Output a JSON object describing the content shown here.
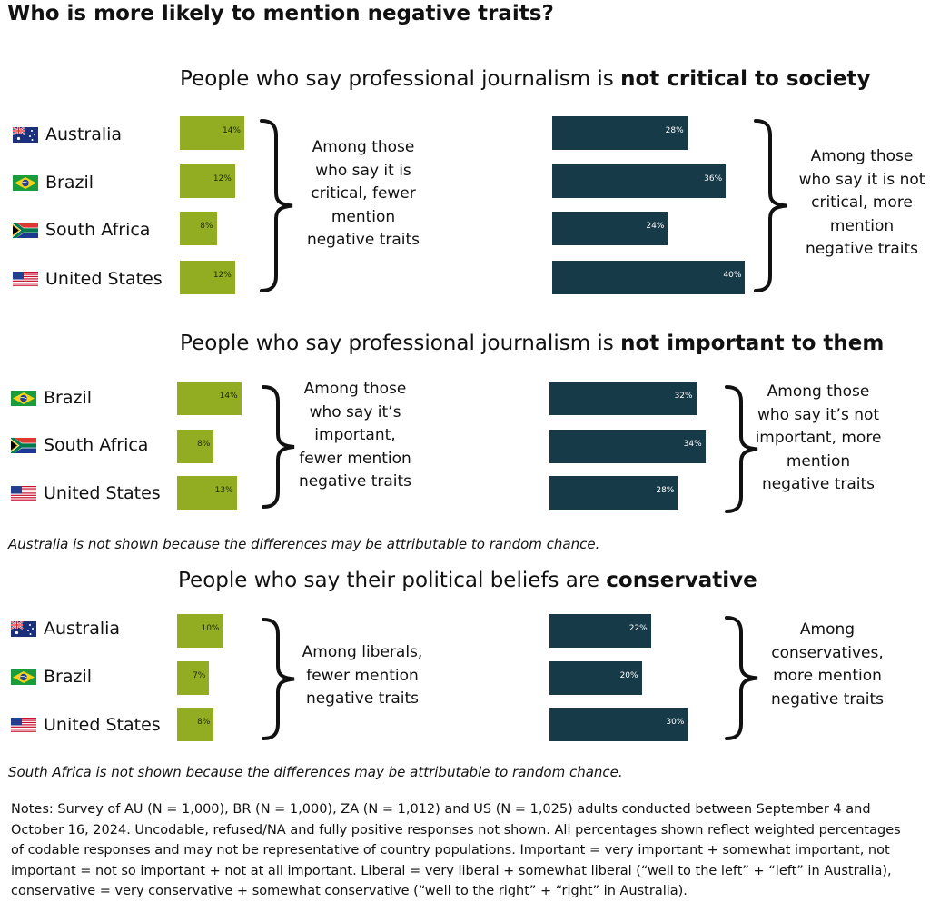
{
  "title": "Who is more likely to mention negative traits?",
  "colors": {
    "green": "#93ad22",
    "dark": "#173a49"
  },
  "chart_data": [
    {
      "type": "bar",
      "title_prefix": "People who say professional journalism is ",
      "title_bold": "not critical to society",
      "categories": [
        "Australia",
        "Brazil",
        "South Africa",
        "United States"
      ],
      "series": [
        {
          "values": [
            14,
            12,
            8,
            12
          ],
          "labels": [
            "14%",
            "12%",
            "8%",
            "12%"
          ]
        },
        {
          "values": [
            28,
            36,
            24,
            40
          ],
          "labels": [
            "28%",
            "36%",
            "24%",
            "40%"
          ]
        }
      ],
      "annotations": [
        "Among those who say it is critical, fewer mention negative traits",
        "Among those who say it is not critical, more mention negative traits"
      ]
    },
    {
      "type": "bar",
      "title_prefix": "People who say professional journalism is ",
      "title_bold": "not important to them",
      "categories": [
        "Brazil",
        "South Africa",
        "United States"
      ],
      "series": [
        {
          "values": [
            14,
            8,
            13
          ],
          "labels": [
            "14%",
            "8%",
            "13%"
          ]
        },
        {
          "values": [
            32,
            34,
            28
          ],
          "labels": [
            "32%",
            "34%",
            "28%"
          ]
        }
      ],
      "annotations": [
        "Among those who say it’s important, fewer mention negative traits",
        "Among those who say it’s not important, more mention negative traits"
      ],
      "footnote": "Australia is not shown because the differences may be attributable to random chance."
    },
    {
      "type": "bar",
      "title_prefix": "People who say their political beliefs are ",
      "title_bold": "conservative",
      "categories": [
        "Australia",
        "Brazil",
        "United States"
      ],
      "series": [
        {
          "values": [
            10,
            7,
            8
          ],
          "labels": [
            "10%",
            "7%",
            "8%"
          ]
        },
        {
          "values": [
            22,
            20,
            30
          ],
          "labels": [
            "22%",
            "20%",
            "30%"
          ]
        }
      ],
      "annotations": [
        "Among liberals, fewer mention negative traits",
        "Among conservatives, more mention negative traits"
      ],
      "footnote": "South Africa is not shown because the differences may be attributable to random chance."
    }
  ],
  "flags": {
    "Australia": "australia-flag-icon",
    "Brazil": "brazil-flag-icon",
    "South Africa": "south-africa-flag-icon",
    "United States": "united-states-flag-icon"
  },
  "notes": "Notes: Survey of AU (N = 1,000), BR (N = 1,000), ZA (N = 1,012) and US (N = 1,025) adults conducted between September 4 and October 16, 2024. Uncodable, refused/NA and fully positive responses not shown. All percentages shown reflect weighted percentages of codable responses and may not be representative of country populations. Important = very important + somewhat important, not important = not so important + not at all important. Liberal = very liberal + somewhat liberal (“well to the left” + “left” in Australia), conservative = very conservative + somewhat conservative (“well to the right” + “right” in Australia)."
}
